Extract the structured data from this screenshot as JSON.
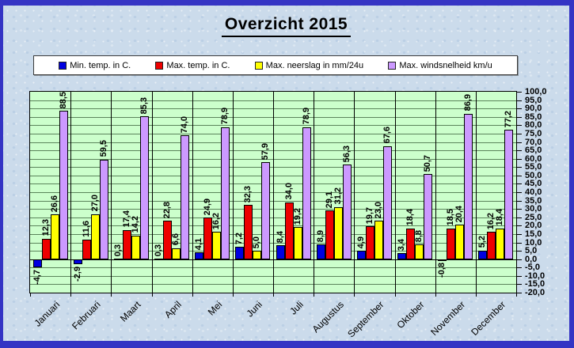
{
  "chart_data": {
    "type": "bar",
    "title": "Overzicht 2015",
    "categories": [
      "Januari",
      "Februari",
      "Maart",
      "April",
      "Mei",
      "Juni",
      "Juli",
      "Augustus",
      "September",
      "Oktober",
      "November",
      "December"
    ],
    "series": [
      {
        "name": "Min. temp. in C.",
        "color": "#0000e0",
        "values": [
          -4.7,
          -2.9,
          0.3,
          0.3,
          4.1,
          7.2,
          8.4,
          8.9,
          4.9,
          3.4,
          -0.8,
          5.2
        ]
      },
      {
        "name": "Max. temp. in C.",
        "color": "#ee0000",
        "values": [
          12.3,
          11.6,
          17.4,
          22.8,
          24.9,
          32.3,
          34.0,
          29.1,
          19.7,
          18.4,
          18.5,
          16.2
        ]
      },
      {
        "name": "Max. neerslag in mm/24u",
        "color": "#ffff00",
        "values": [
          26.6,
          27.0,
          14.2,
          6.6,
          16.2,
          5.0,
          19.2,
          31.2,
          23.0,
          8.8,
          20.4,
          18.4
        ]
      },
      {
        "name": "Max. windsnelheid km/u",
        "color": "#cc99ff",
        "values": [
          88.5,
          59.5,
          85.3,
          74.0,
          78.9,
          57.9,
          78.9,
          56.3,
          67.6,
          50.7,
          86.9,
          77.2
        ]
      }
    ],
    "ylim": [
      -20,
      100
    ],
    "ytick_step": 5,
    "decimal_separator": ",",
    "grid": true,
    "legend_position": "top",
    "axis_side": "right",
    "plot_bg": "#ccffcc",
    "value_labels_rotated": true
  }
}
